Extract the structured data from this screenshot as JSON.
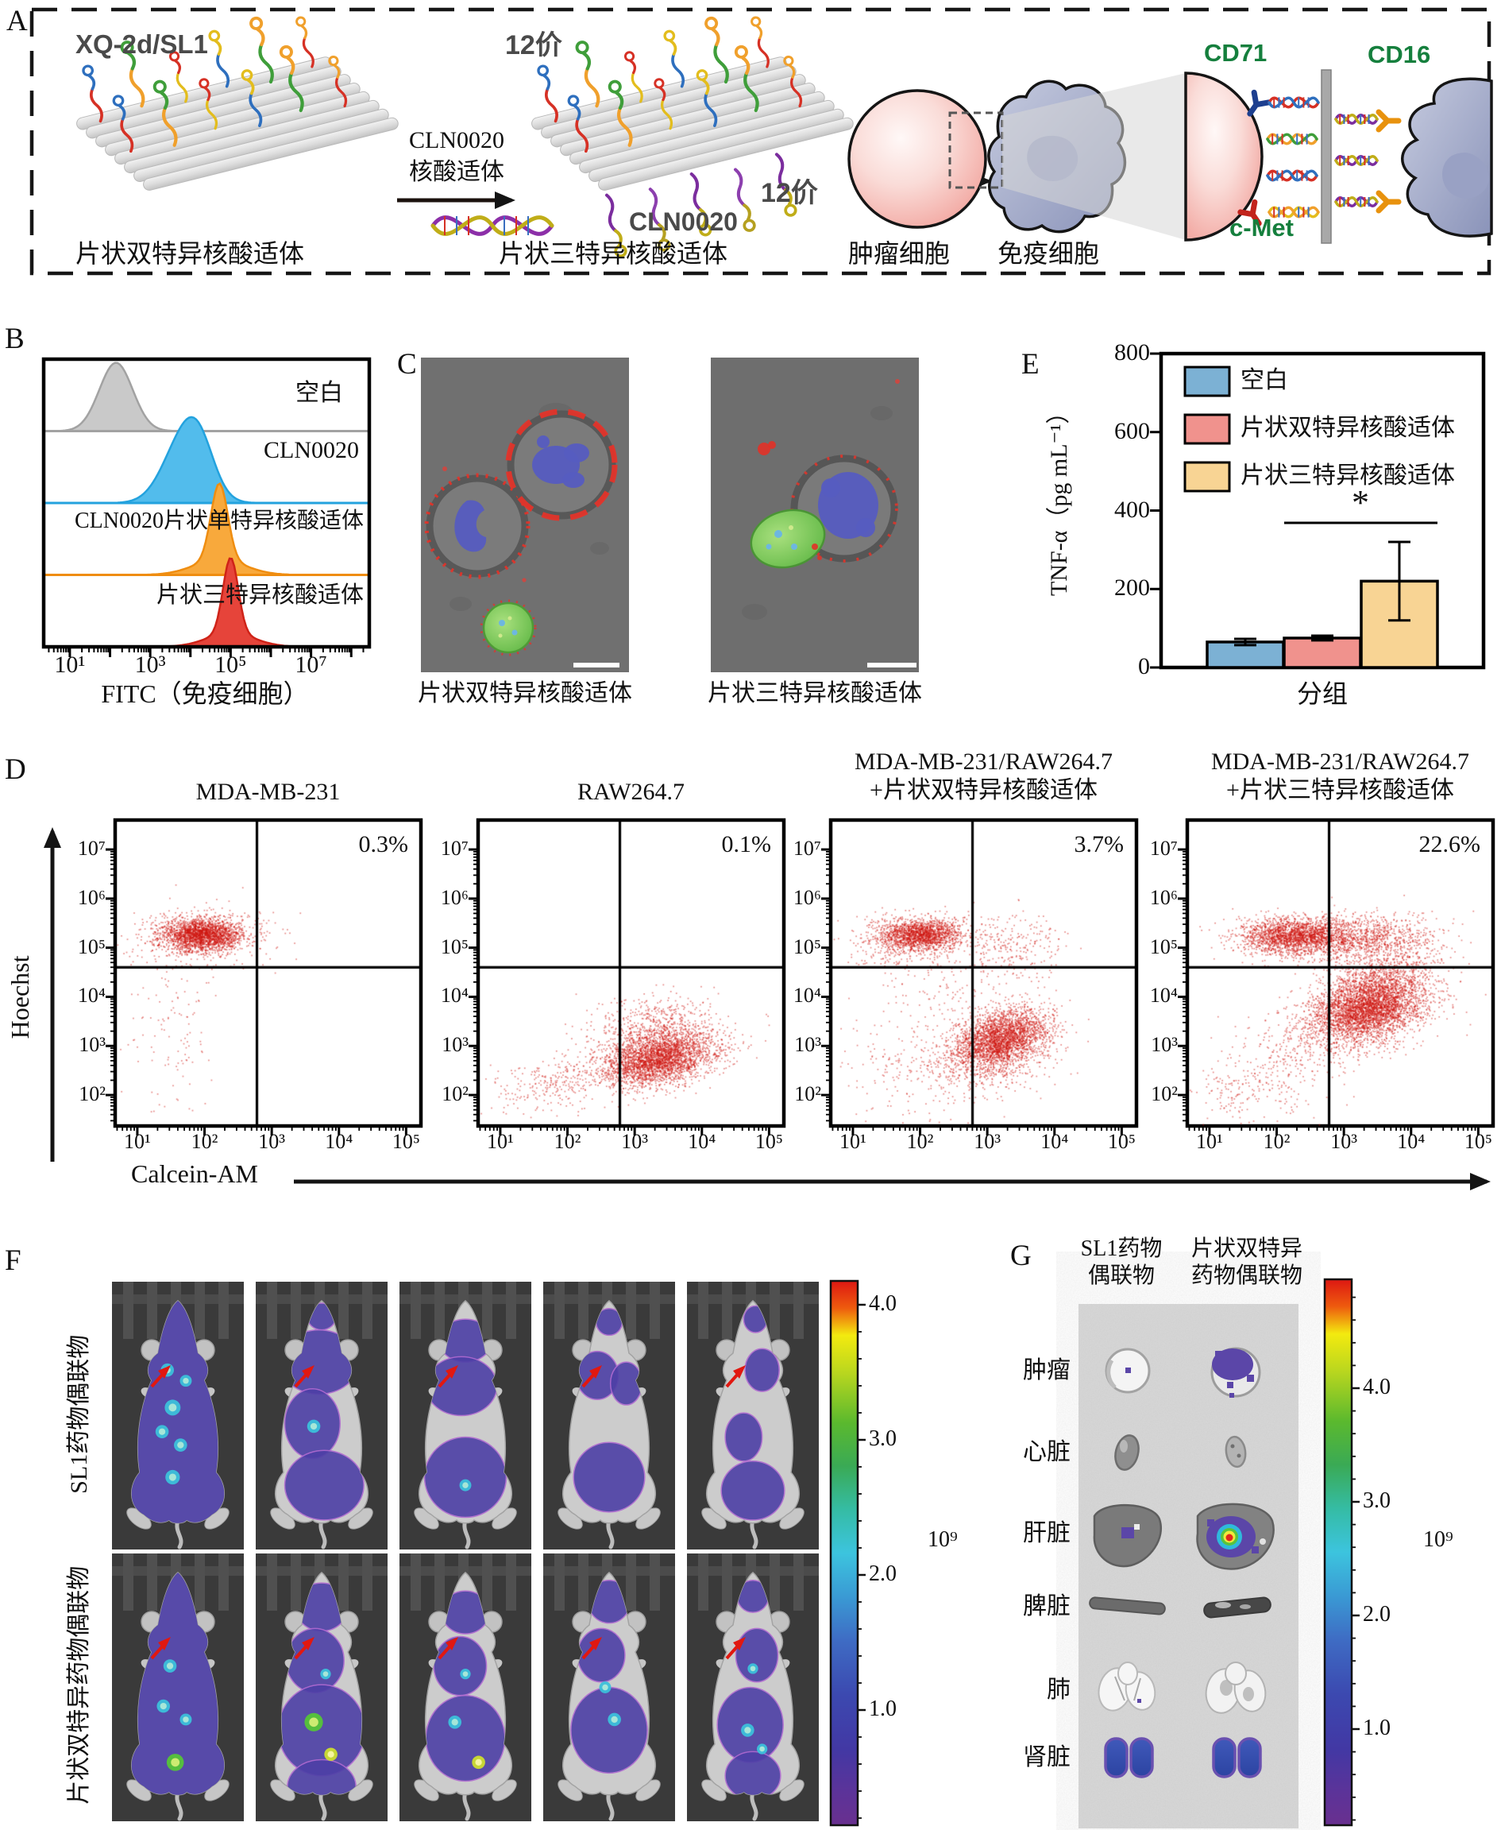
{
  "panelA": {
    "label": "A",
    "sheet_title": "XQ-2d/SL1",
    "arrow_label": [
      "CLN0020",
      "核酸适体"
    ],
    "valence_top": "12价",
    "valence_bottom": "12价",
    "cln_bottom": "CLN0020",
    "captions": {
      "bispecific": "片状双特异核酸适体",
      "trispecific": "片状三特异核酸适体",
      "tumor": "肿瘤细胞",
      "immune": "免疫细胞"
    },
    "receptors": {
      "cd71": "CD71",
      "cmet": "c-Met",
      "cd16": "CD16"
    },
    "receptor_color": "#157f3d"
  },
  "panelB": {
    "label": "B",
    "x_label": "FITC（免疫细胞）",
    "x_ticks": [
      "10¹",
      "10³",
      "10⁵",
      "10⁷"
    ],
    "series": [
      {
        "name": "空白",
        "fill": "#c9c9c9",
        "stroke": "#a2a2a2"
      },
      {
        "name": "CLN0020",
        "fill": "#52bcec",
        "stroke": "#23a2de"
      },
      {
        "name": "CLN0020片状单特异核酸适体",
        "fill": "#f8a93c",
        "stroke": "#ef8d10"
      },
      {
        "name": "片状三特异核酸适体",
        "fill": "#e6443a",
        "stroke": "#cf2318"
      }
    ]
  },
  "panelC": {
    "label": "C",
    "caption_left": "片状双特异核酸适体",
    "caption_right": "片状三特异核酸适体"
  },
  "panelD": {
    "label": "D",
    "x_label": "Calcein-AM",
    "y_label": "Hoechst",
    "x_ticks": [
      "10¹",
      "10²",
      "10³",
      "10⁴",
      "10⁵"
    ],
    "y_ticks": [
      "10²",
      "10³",
      "10⁴",
      "10⁵",
      "10⁶",
      "10⁷"
    ],
    "plots": [
      {
        "title1": "MDA-MB-231",
        "title2": "",
        "pct": "0.3%"
      },
      {
        "title1": "RAW264.7",
        "title2": "",
        "pct": "0.1%"
      },
      {
        "title1": "MDA-MB-231/RAW264.7",
        "title2": "+片状双特异核酸适体",
        "pct": "3.7%"
      },
      {
        "title1": "MDA-MB-231/RAW264.7",
        "title2": "+片状三特异核酸适体",
        "pct": "22.6%"
      }
    ]
  },
  "panelE": {
    "label": "E",
    "y_label": "TNF-α（pg mL⁻¹）",
    "x_label": "分组",
    "y_ticks": [
      "0",
      "200",
      "400",
      "600",
      "800"
    ],
    "sig": "*"
  },
  "panelF": {
    "label": "F",
    "row1_label": "SL1药物偶联物",
    "row2_label": "片状双特异药物偶联物",
    "colorbar_ticks": [
      "4.0",
      "3.0",
      "2.0",
      "1.0"
    ],
    "exp": "10⁹",
    "mice": [
      {
        "full": 1,
        "patches": [],
        "spots": [
          [
            0.42,
            0.33,
            0.05,
            "c"
          ],
          [
            0.56,
            0.37,
            0.045,
            "c"
          ],
          [
            0.46,
            0.47,
            0.06,
            "c"
          ],
          [
            0.38,
            0.56,
            0.05,
            "c"
          ],
          [
            0.52,
            0.61,
            0.05,
            "c"
          ],
          [
            0.46,
            0.73,
            0.055,
            "c"
          ]
        ]
      },
      {
        "patches": [
          [
            0.5,
            0.13,
            0.11,
            0.05
          ],
          [
            0.48,
            0.3,
            0.3,
            0.12
          ],
          [
            0.43,
            0.53,
            0.21,
            0.13
          ],
          [
            0.52,
            0.76,
            0.3,
            0.13
          ]
        ],
        "spots": [
          [
            0.44,
            0.54,
            0.05,
            "c"
          ]
        ]
      },
      {
        "patches": [
          [
            0.5,
            0.22,
            0.2,
            0.08
          ],
          [
            0.47,
            0.39,
            0.27,
            0.11
          ],
          [
            0.5,
            0.73,
            0.31,
            0.15
          ]
        ],
        "spots": [
          [
            0.5,
            0.76,
            0.045,
            "c"
          ]
        ]
      },
      {
        "patches": [
          [
            0.5,
            0.15,
            0.1,
            0.05
          ],
          [
            0.41,
            0.35,
            0.16,
            0.09
          ],
          [
            0.63,
            0.38,
            0.12,
            0.08
          ],
          [
            0.5,
            0.73,
            0.27,
            0.13
          ]
        ],
        "spots": []
      },
      {
        "patches": [
          [
            0.52,
            0.14,
            0.09,
            0.05
          ],
          [
            0.57,
            0.33,
            0.13,
            0.08
          ],
          [
            0.43,
            0.58,
            0.14,
            0.09
          ],
          [
            0.5,
            0.78,
            0.24,
            0.11
          ]
        ],
        "spots": []
      },
      {
        "full": 1,
        "patches": [],
        "spots": [
          [
            0.44,
            0.42,
            0.05,
            "c"
          ],
          [
            0.39,
            0.57,
            0.05,
            "c"
          ],
          [
            0.48,
            0.78,
            0.065,
            "g"
          ],
          [
            0.56,
            0.62,
            0.045,
            "c"
          ]
        ]
      },
      {
        "patches": [
          [
            0.5,
            0.2,
            0.2,
            0.09
          ],
          [
            0.45,
            0.4,
            0.22,
            0.12
          ],
          [
            0.5,
            0.66,
            0.33,
            0.17
          ],
          [
            0.5,
            0.87,
            0.26,
            0.1
          ]
        ],
        "spots": [
          [
            0.53,
            0.45,
            0.04,
            "c"
          ],
          [
            0.44,
            0.63,
            0.07,
            "g"
          ],
          [
            0.57,
            0.75,
            0.05,
            "y"
          ]
        ]
      },
      {
        "patches": [
          [
            0.5,
            0.22,
            0.18,
            0.08
          ],
          [
            0.46,
            0.42,
            0.2,
            0.11
          ],
          [
            0.5,
            0.69,
            0.3,
            0.16
          ]
        ],
        "spots": [
          [
            0.5,
            0.45,
            0.04,
            "c"
          ],
          [
            0.42,
            0.63,
            0.05,
            "c"
          ],
          [
            0.6,
            0.78,
            0.05,
            "y"
          ]
        ]
      },
      {
        "patches": [
          [
            0.5,
            0.18,
            0.16,
            0.08
          ],
          [
            0.44,
            0.38,
            0.18,
            0.1
          ],
          [
            0.5,
            0.66,
            0.29,
            0.16
          ]
        ],
        "spots": [
          [
            0.47,
            0.5,
            0.045,
            "c"
          ],
          [
            0.54,
            0.62,
            0.05,
            "c"
          ]
        ]
      },
      {
        "patches": [
          [
            0.5,
            0.16,
            0.12,
            0.06
          ],
          [
            0.53,
            0.38,
            0.16,
            0.1
          ],
          [
            0.48,
            0.64,
            0.25,
            0.14
          ],
          [
            0.5,
            0.83,
            0.21,
            0.09
          ]
        ],
        "spots": [
          [
            0.5,
            0.43,
            0.04,
            "c"
          ],
          [
            0.46,
            0.66,
            0.05,
            "c"
          ],
          [
            0.57,
            0.73,
            0.04,
            "c"
          ]
        ]
      }
    ]
  },
  "panelG": {
    "label": "G",
    "col1": [
      "SL1药物",
      "偶联物"
    ],
    "col2": [
      "片状双特异",
      "药物偶联物"
    ],
    "rows": [
      "肿瘤",
      "心脏",
      "肝脏",
      "脾脏",
      "肺",
      "肾脏"
    ],
    "colorbar_ticks": [
      "4.0",
      "3.0",
      "2.0",
      "1.0"
    ],
    "exp": "10⁹"
  },
  "chart_data": [
    {
      "type": "area",
      "id": "panelB-flow-histograms",
      "xlabel": "FITC（免疫细胞）",
      "x_scale": "log10",
      "x_tick_exponents": [
        1,
        3,
        5,
        7
      ],
      "series": [
        {
          "name": "空白",
          "peak_log10": 2.15,
          "sigma_log10": 0.42
        },
        {
          "name": "CLN0020",
          "peak_log10": 3.85,
          "sigma_log10": 0.5
        },
        {
          "name": "CLN0020片状单特异核酸适体",
          "peak_log10": 4.72,
          "sigma_log10": 0.2
        },
        {
          "name": "片状三特异核酸适体",
          "peak_log10": 5.0,
          "sigma_log10": 0.18
        }
      ]
    },
    {
      "type": "scatter",
      "id": "panelD-flow-quadrants",
      "xlabel": "Calcein-AM",
      "ylabel": "Hoechst",
      "x_range_log10": [
        0.67,
        5.22
      ],
      "y_range_log10": [
        1.37,
        7.6
      ],
      "gate_x_log10": 2.78,
      "gate_y_log10": 4.6,
      "plots": [
        {
          "title": "MDA-MB-231",
          "upper_right_pct": 0.3,
          "clusters": [
            [
              1.95,
              5.28,
              0.3,
              0.16,
              2200,
              0
            ],
            [
              1.9,
              5.2,
              0.5,
              0.3,
              400,
              0
            ],
            [
              1.55,
              3.3,
              0.3,
              0.85,
              120,
              0
            ],
            [
              2.9,
              5.45,
              0.3,
              0.2,
              15,
              0
            ]
          ]
        },
        {
          "title": "RAW264.7",
          "upper_right_pct": 0.1,
          "clusters": [
            [
              3.35,
              2.75,
              0.4,
              0.28,
              3200,
              0.5
            ],
            [
              3.25,
              3.45,
              0.45,
              0.3,
              500,
              0.3
            ],
            [
              1.75,
              2.2,
              0.45,
              0.28,
              260,
              0.3
            ],
            [
              4.6,
              2.9,
              0.25,
              0.2,
              15,
              0
            ]
          ]
        },
        {
          "title": "MDA-MB-231/RAW264.7+片状双特异核酸适体",
          "upper_right_pct": 3.7,
          "clusters": [
            [
              2.0,
              5.28,
              0.3,
              0.16,
              1700,
              0.2
            ],
            [
              1.8,
              5.1,
              0.5,
              0.3,
              300,
              0
            ],
            [
              3.3,
              5.05,
              0.4,
              0.33,
              280,
              0
            ],
            [
              3.2,
              3.15,
              0.33,
              0.3,
              2800,
              0.4
            ],
            [
              3.0,
              2.6,
              0.5,
              0.3,
              350,
              0.3
            ],
            [
              1.9,
              2.5,
              0.5,
              0.55,
              220,
              0
            ],
            [
              2.6,
              4.1,
              0.5,
              0.4,
              120,
              0
            ]
          ]
        },
        {
          "title": "MDA-MB-231/RAW264.7+片状三特异核酸适体",
          "upper_right_pct": 22.6,
          "clusters": [
            [
              2.2,
              5.25,
              0.38,
              0.18,
              1800,
              0
            ],
            [
              3.0,
              5.2,
              0.55,
              0.22,
              1200,
              0
            ],
            [
              3.9,
              5.1,
              0.3,
              0.3,
              250,
              0
            ],
            [
              3.35,
              3.8,
              0.4,
              0.33,
              3800,
              0.3
            ],
            [
              3.6,
              4.45,
              0.4,
              0.25,
              500,
              0.2
            ],
            [
              2.8,
              3.2,
              0.5,
              0.4,
              400,
              0.3
            ],
            [
              1.9,
              2.4,
              0.4,
              0.5,
              200,
              0
            ],
            [
              1.3,
              2.1,
              0.25,
              0.3,
              80,
              0
            ]
          ]
        }
      ]
    },
    {
      "type": "bar",
      "id": "panelE-TNFa",
      "ylabel": "TNF-α（pg mL⁻¹）",
      "xlabel": "分组",
      "ylim": [
        0,
        800
      ],
      "y_ticks": [
        0,
        200,
        400,
        600,
        800
      ],
      "groups": [
        {
          "name": "空白",
          "color": "#7cb1d4",
          "value": 65,
          "err": 8
        },
        {
          "name": "片状双特异核酸适体",
          "color": "#f0928d",
          "value": 75,
          "err": 6
        },
        {
          "name": "片状三特异核酸适体",
          "color": "#f8d494",
          "value": 220,
          "err": 100
        }
      ],
      "significance": {
        "between": [
          "片状双特异核酸适体",
          "片状三特异核酸适体"
        ],
        "label": "*"
      }
    }
  ]
}
